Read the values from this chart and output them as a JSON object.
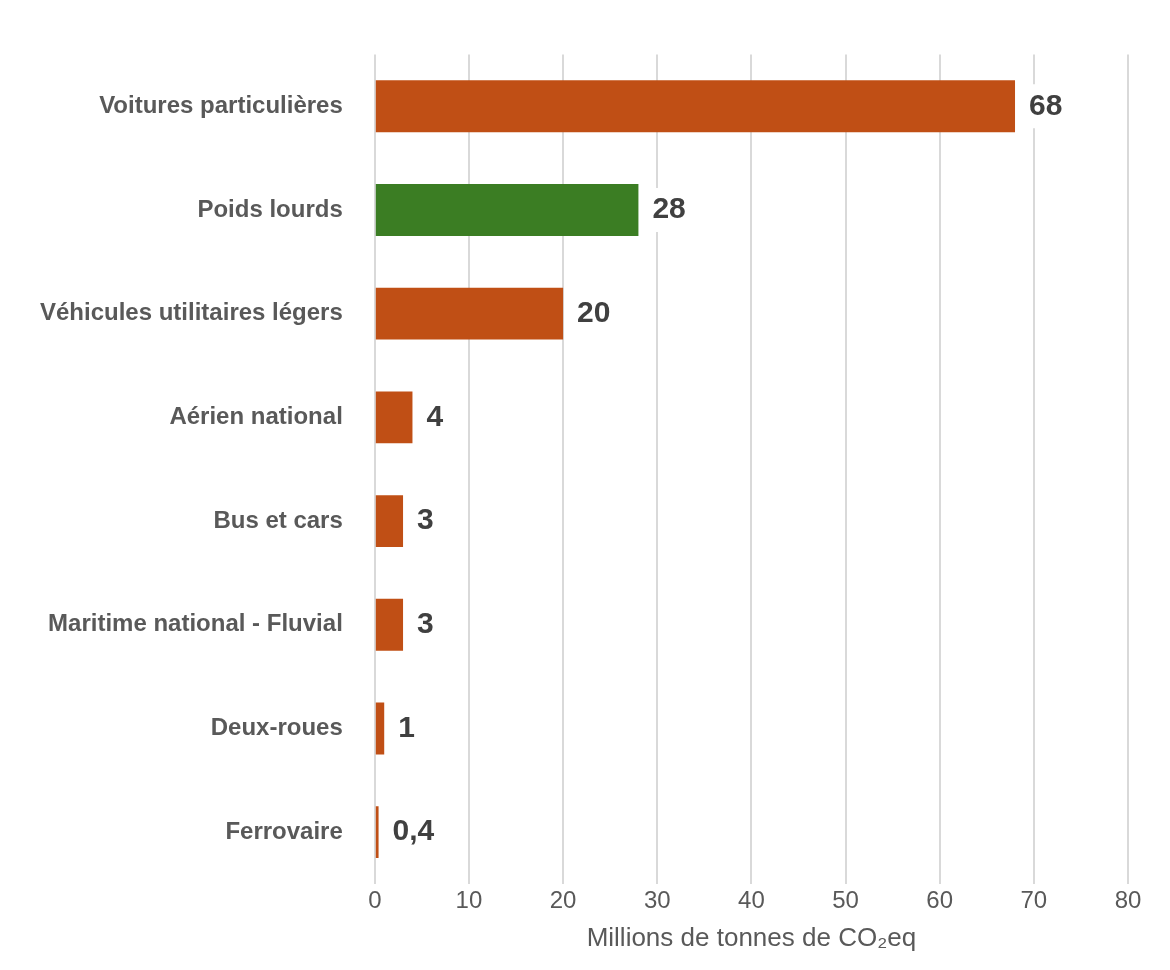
{
  "chart_data": {
    "type": "bar",
    "orientation": "horizontal",
    "xlabel": "Millions de tonnes de CO₂eq",
    "categories": [
      "Voitures particulières",
      "Poids lourds",
      "Véhicules utilitaires légers",
      "Aérien national",
      "Bus et cars",
      "Maritime national - Fluvial",
      "Deux-roues",
      "Ferrovaire"
    ],
    "values": [
      68,
      28,
      20,
      4,
      3,
      3,
      1,
      0.4
    ],
    "colors": [
      "#c04f15",
      "#3b7d23",
      "#c04f15",
      "#c04f15",
      "#c04f15",
      "#c04f15",
      "#c04f15",
      "#c04f15"
    ],
    "value_labels": [
      "68",
      "28",
      "20",
      "4",
      "3",
      "3",
      "1",
      "0,4"
    ],
    "xlim": [
      0,
      80
    ],
    "xticks": [
      0,
      10,
      20,
      30,
      40,
      50,
      60,
      70,
      80
    ],
    "grid": "x"
  }
}
